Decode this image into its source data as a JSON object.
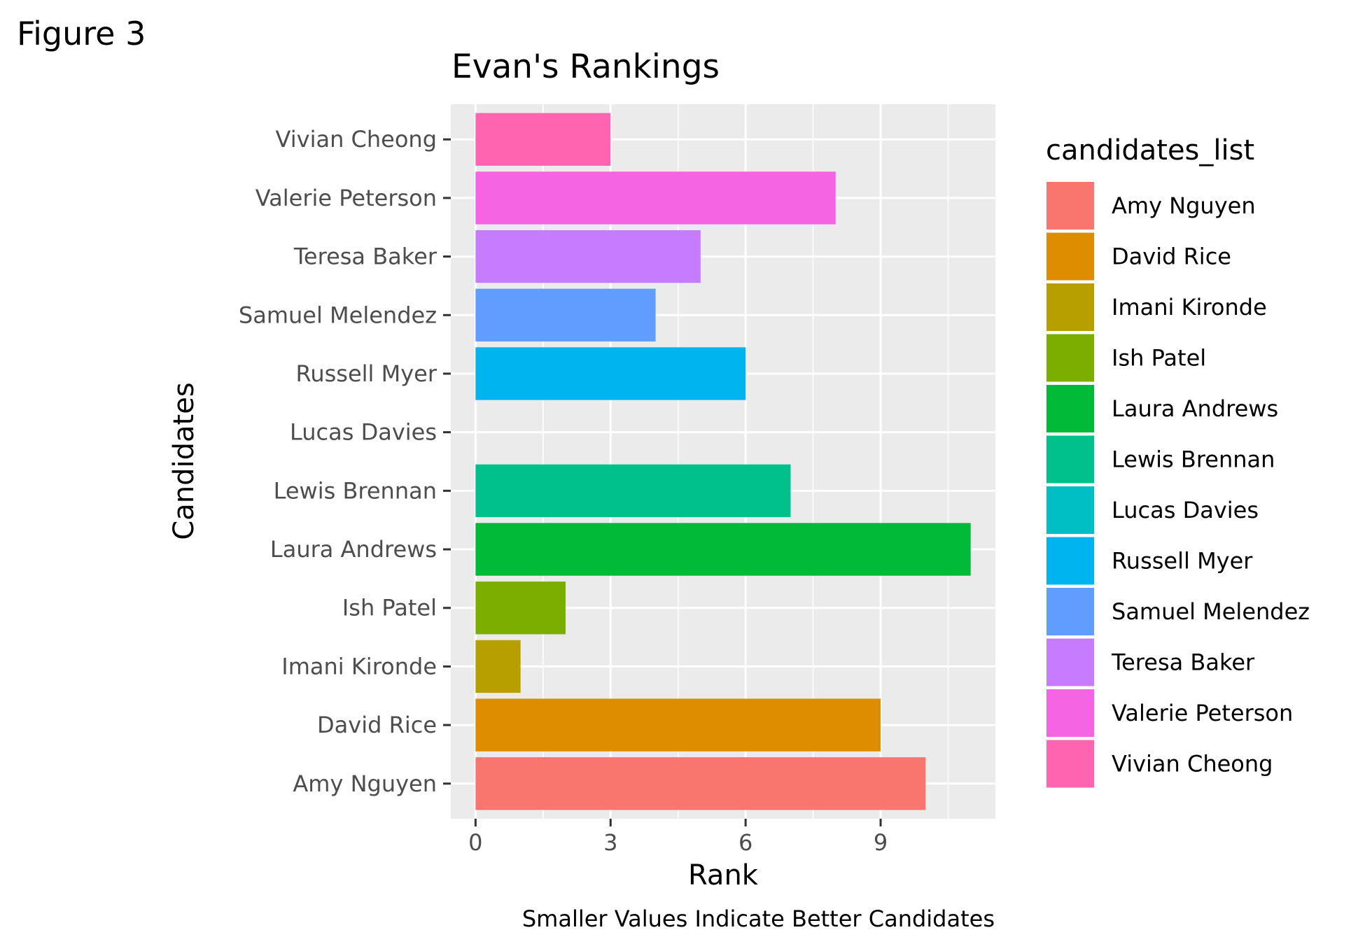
{
  "figure_label": "Figure 3",
  "chart_data": {
    "type": "bar",
    "orientation": "horizontal",
    "title": "Evan's Rankings",
    "xlabel": "Rank",
    "ylabel": "Candidates",
    "caption": "Smaller Values Indicate Better Candidates",
    "xlim": [
      -0.55,
      11.55
    ],
    "x_ticks": [
      0,
      3,
      6,
      9
    ],
    "grid": true,
    "legend_title": "candidates_list",
    "legend_position": "right",
    "categories": [
      "Amy Nguyen",
      "David Rice",
      "Imani Kironde",
      "Ish Patel",
      "Laura Andrews",
      "Lewis Brennan",
      "Lucas Davies",
      "Russell Myer",
      "Samuel Melendez",
      "Teresa Baker",
      "Valerie Peterson",
      "Vivian Cheong"
    ],
    "values": [
      10,
      9,
      1,
      2,
      11,
      7,
      0,
      6,
      4,
      5,
      8,
      3
    ],
    "colors": [
      "#F8766D",
      "#DE8C00",
      "#B79F00",
      "#7CAE00",
      "#00BA38",
      "#00C08B",
      "#00BFC4",
      "#00B4F0",
      "#619CFF",
      "#C77CFF",
      "#F564E3",
      "#FF64B0"
    ]
  }
}
